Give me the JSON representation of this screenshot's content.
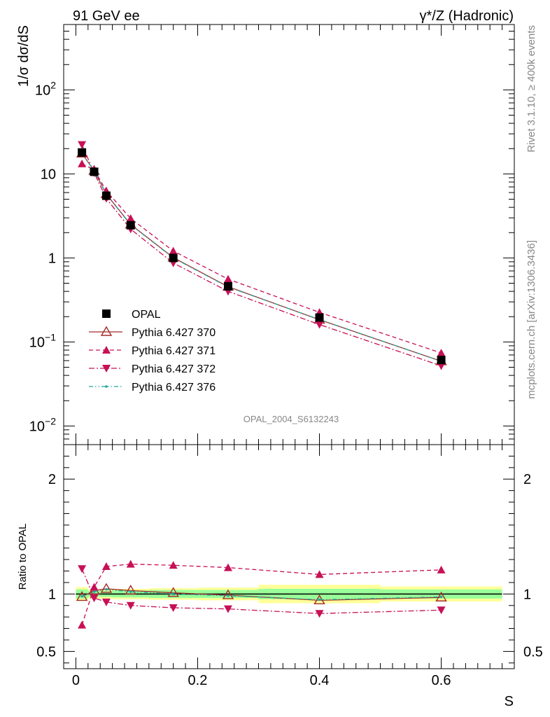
{
  "header": {
    "left_title": "91 GeV ee",
    "right_title": "γ*/Z (Hadronic)"
  },
  "side_text": {
    "rivet": "Rivet 3.1.10, ≥ 400k events",
    "mcplots": "mcplots.cern.ch [arXiv:1306.3436]"
  },
  "watermark": "OPAL_2004_S6132243",
  "chart_data": [
    {
      "type": "line",
      "panel": "main",
      "ylabel": "1/σ dσ/dS",
      "yscale": "log",
      "ylim": [
        0.006,
        600
      ],
      "xlim": [
        -0.02,
        0.72
      ],
      "ytick_labels": [
        {
          "value": 0.01,
          "base": "10",
          "exp": "−2"
        },
        {
          "value": 0.1,
          "base": "10",
          "exp": "−1"
        },
        {
          "value": 1,
          "base": "1",
          "exp": ""
        },
        {
          "value": 10,
          "base": "10",
          "exp": ""
        },
        {
          "value": 100,
          "base": "10",
          "exp": "2"
        }
      ],
      "x": [
        0.01,
        0.03,
        0.05,
        0.09,
        0.16,
        0.25,
        0.4,
        0.6
      ],
      "series": [
        {
          "name": "OPAL",
          "color": "#000000",
          "marker": "square",
          "values": [
            18.0,
            10.6,
            5.5,
            2.45,
            1.0,
            0.46,
            0.195,
            0.061
          ]
        },
        {
          "name": "Pythia 6.427 370",
          "color": "#a52a2a",
          "marker": "open-triangle-up",
          "dash": "solid",
          "values": [
            17.5,
            10.9,
            5.75,
            2.5,
            1.01,
            0.455,
            0.184,
            0.059
          ]
        },
        {
          "name": "Pythia 6.427 371",
          "color": "#c71056",
          "marker": "triangle-up",
          "dash": "dashed",
          "values": [
            13.2,
            11.2,
            6.3,
            2.95,
            1.21,
            0.56,
            0.225,
            0.074
          ]
        },
        {
          "name": "Pythia 6.427 372",
          "color": "#c71056",
          "marker": "triangle-down",
          "dash": "dashdot",
          "values": [
            22.3,
            10.3,
            5.1,
            2.2,
            0.87,
            0.4,
            0.161,
            0.052
          ]
        },
        {
          "name": "Pythia 6.427 376",
          "color": "#1fa89a",
          "marker": "dot",
          "dash": "dashdotdot",
          "values": [
            17.6,
            10.85,
            5.7,
            2.48,
            1.0,
            0.45,
            0.185,
            0.059
          ]
        }
      ]
    },
    {
      "type": "line",
      "panel": "ratio",
      "ylabel": "Ratio to OPAL",
      "xlabel": "S",
      "ylim": [
        0.35,
        2.3
      ],
      "xlim": [
        -0.02,
        0.72
      ],
      "ytick_labels": [
        "0.5",
        "1",
        "2"
      ],
      "xtick_labels": [
        "0",
        "0.2",
        "0.4",
        "0.6"
      ],
      "band_bins": [
        {
          "lo": 0.0,
          "hi": 0.02,
          "inner": [
            0.96,
            1.04
          ],
          "outer": [
            0.94,
            1.06
          ]
        },
        {
          "lo": 0.02,
          "hi": 0.04,
          "inner": [
            0.975,
            1.025
          ],
          "outer": [
            0.96,
            1.04
          ]
        },
        {
          "lo": 0.04,
          "hi": 0.06,
          "inner": [
            0.975,
            1.025
          ],
          "outer": [
            0.96,
            1.04
          ]
        },
        {
          "lo": 0.06,
          "hi": 0.12,
          "inner": [
            0.97,
            1.03
          ],
          "outer": [
            0.955,
            1.045
          ]
        },
        {
          "lo": 0.12,
          "hi": 0.2,
          "inner": [
            0.965,
            1.035
          ],
          "outer": [
            0.95,
            1.05
          ]
        },
        {
          "lo": 0.2,
          "hi": 0.3,
          "inner": [
            0.965,
            1.035
          ],
          "outer": [
            0.945,
            1.055
          ]
        },
        {
          "lo": 0.3,
          "hi": 0.5,
          "inner": [
            0.955,
            1.045
          ],
          "outer": [
            0.92,
            1.08
          ]
        },
        {
          "lo": 0.5,
          "hi": 0.7,
          "inner": [
            0.96,
            1.04
          ],
          "outer": [
            0.935,
            1.065
          ]
        }
      ],
      "x": [
        0.01,
        0.03,
        0.05,
        0.09,
        0.16,
        0.25,
        0.4,
        0.6
      ],
      "series": [
        {
          "name": "Pythia 6.427 370",
          "color": "#a52a2a",
          "marker": "open-triangle-up",
          "dash": "solid",
          "values": [
            0.975,
            1.03,
            1.045,
            1.03,
            1.01,
            0.99,
            0.945,
            0.97
          ]
        },
        {
          "name": "Pythia 6.427 371",
          "color": "#c71056",
          "marker": "triangle-up",
          "dash": "dashed",
          "values": [
            0.73,
            1.06,
            1.24,
            1.26,
            1.25,
            1.23,
            1.17,
            1.21
          ]
        },
        {
          "name": "Pythia 6.427 372",
          "color": "#c71056",
          "marker": "triangle-down",
          "dash": "dashdot",
          "values": [
            1.22,
            0.965,
            0.93,
            0.9,
            0.88,
            0.87,
            0.83,
            0.86
          ]
        },
        {
          "name": "Pythia 6.427 376",
          "color": "#1fa89a",
          "marker": "dot",
          "dash": "dashdotdot",
          "values": [
            0.98,
            1.02,
            1.04,
            1.02,
            1.0,
            0.985,
            0.95,
            0.975
          ]
        }
      ]
    }
  ]
}
